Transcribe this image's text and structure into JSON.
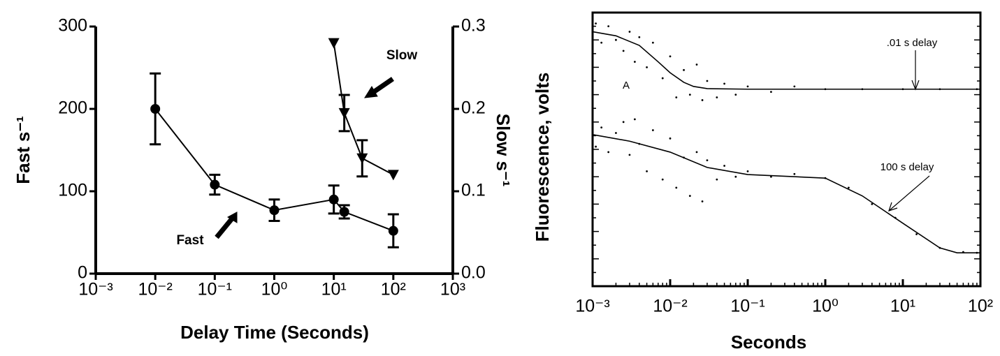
{
  "chart_data": [
    {
      "type": "line",
      "xlabel": "Delay Time (Seconds)",
      "ylabel": "Fast  s⁻¹",
      "y2label": "Slow  s⁻¹",
      "xscale": "log",
      "xlim": [
        0.001,
        1000
      ],
      "xticks": [
        {
          "value": 0.001,
          "label": "10⁻³"
        },
        {
          "value": 0.01,
          "label": "10⁻²"
        },
        {
          "value": 0.1,
          "label": "10⁻¹"
        },
        {
          "value": 1,
          "label": "10⁰"
        },
        {
          "value": 10,
          "label": "10¹"
        },
        {
          "value": 100,
          "label": "10²"
        },
        {
          "value": 1000,
          "label": "10³"
        }
      ],
      "ylim": [
        0,
        300
      ],
      "yticks": [
        0,
        100,
        200,
        300
      ],
      "y2lim": [
        0,
        0.3
      ],
      "y2ticks": [
        {
          "value": 0,
          "label": "0.0"
        },
        0.1,
        0.2,
        0.3
      ],
      "series": [
        {
          "name": "Fast",
          "color": "#000000",
          "marker": "circle",
          "x": [
            0.01,
            0.1,
            1,
            10,
            15,
            100
          ],
          "values": [
            200,
            108,
            77,
            90,
            75,
            52
          ],
          "errors": [
            43,
            12,
            13,
            17,
            8,
            20
          ]
        },
        {
          "name": "Slow",
          "axis": "y2",
          "color": "#000000",
          "marker": "triangle-down",
          "x": [
            10,
            15,
            30,
            100
          ],
          "values": [
            0.28,
            0.195,
            0.14,
            0.12
          ],
          "errors": [
            null,
            0.022,
            0.022,
            null
          ]
        }
      ],
      "annotations": [
        "Slow",
        "Fast"
      ]
    },
    {
      "type": "line",
      "xlabel": "Seconds",
      "ylabel": "Fluorescence, volts",
      "xscale": "log",
      "xlim": [
        0.001,
        100
      ],
      "xticks": [
        {
          "value": 0.001,
          "label": "10⁻³"
        },
        {
          "value": 0.01,
          "label": "10⁻²"
        },
        {
          "value": 0.1,
          "label": "10⁻¹"
        },
        {
          "value": 1,
          "label": "10⁰"
        },
        {
          "value": 10,
          "label": "10¹"
        },
        {
          "value": 100,
          "label": "10²"
        }
      ],
      "ylim": [
        0,
        10
      ],
      "series": [
        {
          "style": "dots",
          "color": "#000000",
          "x": [
            0.0011,
            0.0013,
            0.0016,
            0.002,
            0.0025,
            0.003,
            0.0035,
            0.004,
            0.005,
            0.006,
            0.008,
            0.01,
            0.012,
            0.015,
            0.018,
            0.022,
            0.026,
            0.03,
            0.04,
            0.05,
            0.07,
            0.1,
            0.2,
            0.4,
            1,
            3,
            10,
            30,
            90
          ],
          "values": [
            9.6,
            8.9,
            9.5,
            9.0,
            8.6,
            9.3,
            8.2,
            9.1,
            8.0,
            8.9,
            7.6,
            8.4,
            6.9,
            7.9,
            7.0,
            8.1,
            6.8,
            7.5,
            6.9,
            7.4,
            7.0,
            7.3,
            7.1,
            7.3,
            7.2,
            7.2,
            7.2,
            7.2,
            7.2
          ]
        },
        {
          "style": "line",
          "color": "#000000",
          "x": [
            0.001,
            0.002,
            0.004,
            0.007,
            0.01,
            0.015,
            0.02,
            0.03,
            0.1,
            1,
            10,
            100
          ],
          "values": [
            9.3,
            9.15,
            8.8,
            8.2,
            7.8,
            7.45,
            7.3,
            7.22,
            7.2,
            7.2,
            7.2,
            7.2
          ]
        },
        {
          "style": "dots",
          "color": "#000000",
          "x": [
            0.0011,
            0.0013,
            0.0016,
            0.002,
            0.0025,
            0.003,
            0.0035,
            0.004,
            0.005,
            0.006,
            0.008,
            0.01,
            0.012,
            0.015,
            0.018,
            0.022,
            0.026,
            0.03,
            0.04,
            0.05,
            0.07,
            0.1,
            0.2,
            0.4,
            1,
            2,
            4,
            8,
            15,
            30,
            60,
            90
          ],
          "values": [
            5.1,
            5.8,
            4.9,
            5.6,
            6.0,
            4.8,
            6.1,
            5.2,
            4.2,
            5.7,
            3.9,
            5.4,
            3.6,
            4.7,
            3.3,
            4.9,
            3.1,
            4.6,
            3.9,
            4.4,
            4.0,
            4.2,
            4.0,
            4.1,
            3.95,
            3.6,
            3.0,
            2.5,
            1.9,
            1.4,
            1.25,
            1.22
          ]
        },
        {
          "style": "line",
          "color": "#000000",
          "x": [
            0.001,
            0.003,
            0.01,
            0.03,
            0.1,
            1,
            3,
            10,
            30,
            50,
            100
          ],
          "values": [
            5.54,
            5.3,
            4.9,
            4.34,
            4.08,
            3.95,
            3.3,
            2.3,
            1.4,
            1.22,
            1.22
          ]
        }
      ],
      "annotations": [
        ".01 s delay",
        "100 s delay",
        "A"
      ]
    }
  ]
}
